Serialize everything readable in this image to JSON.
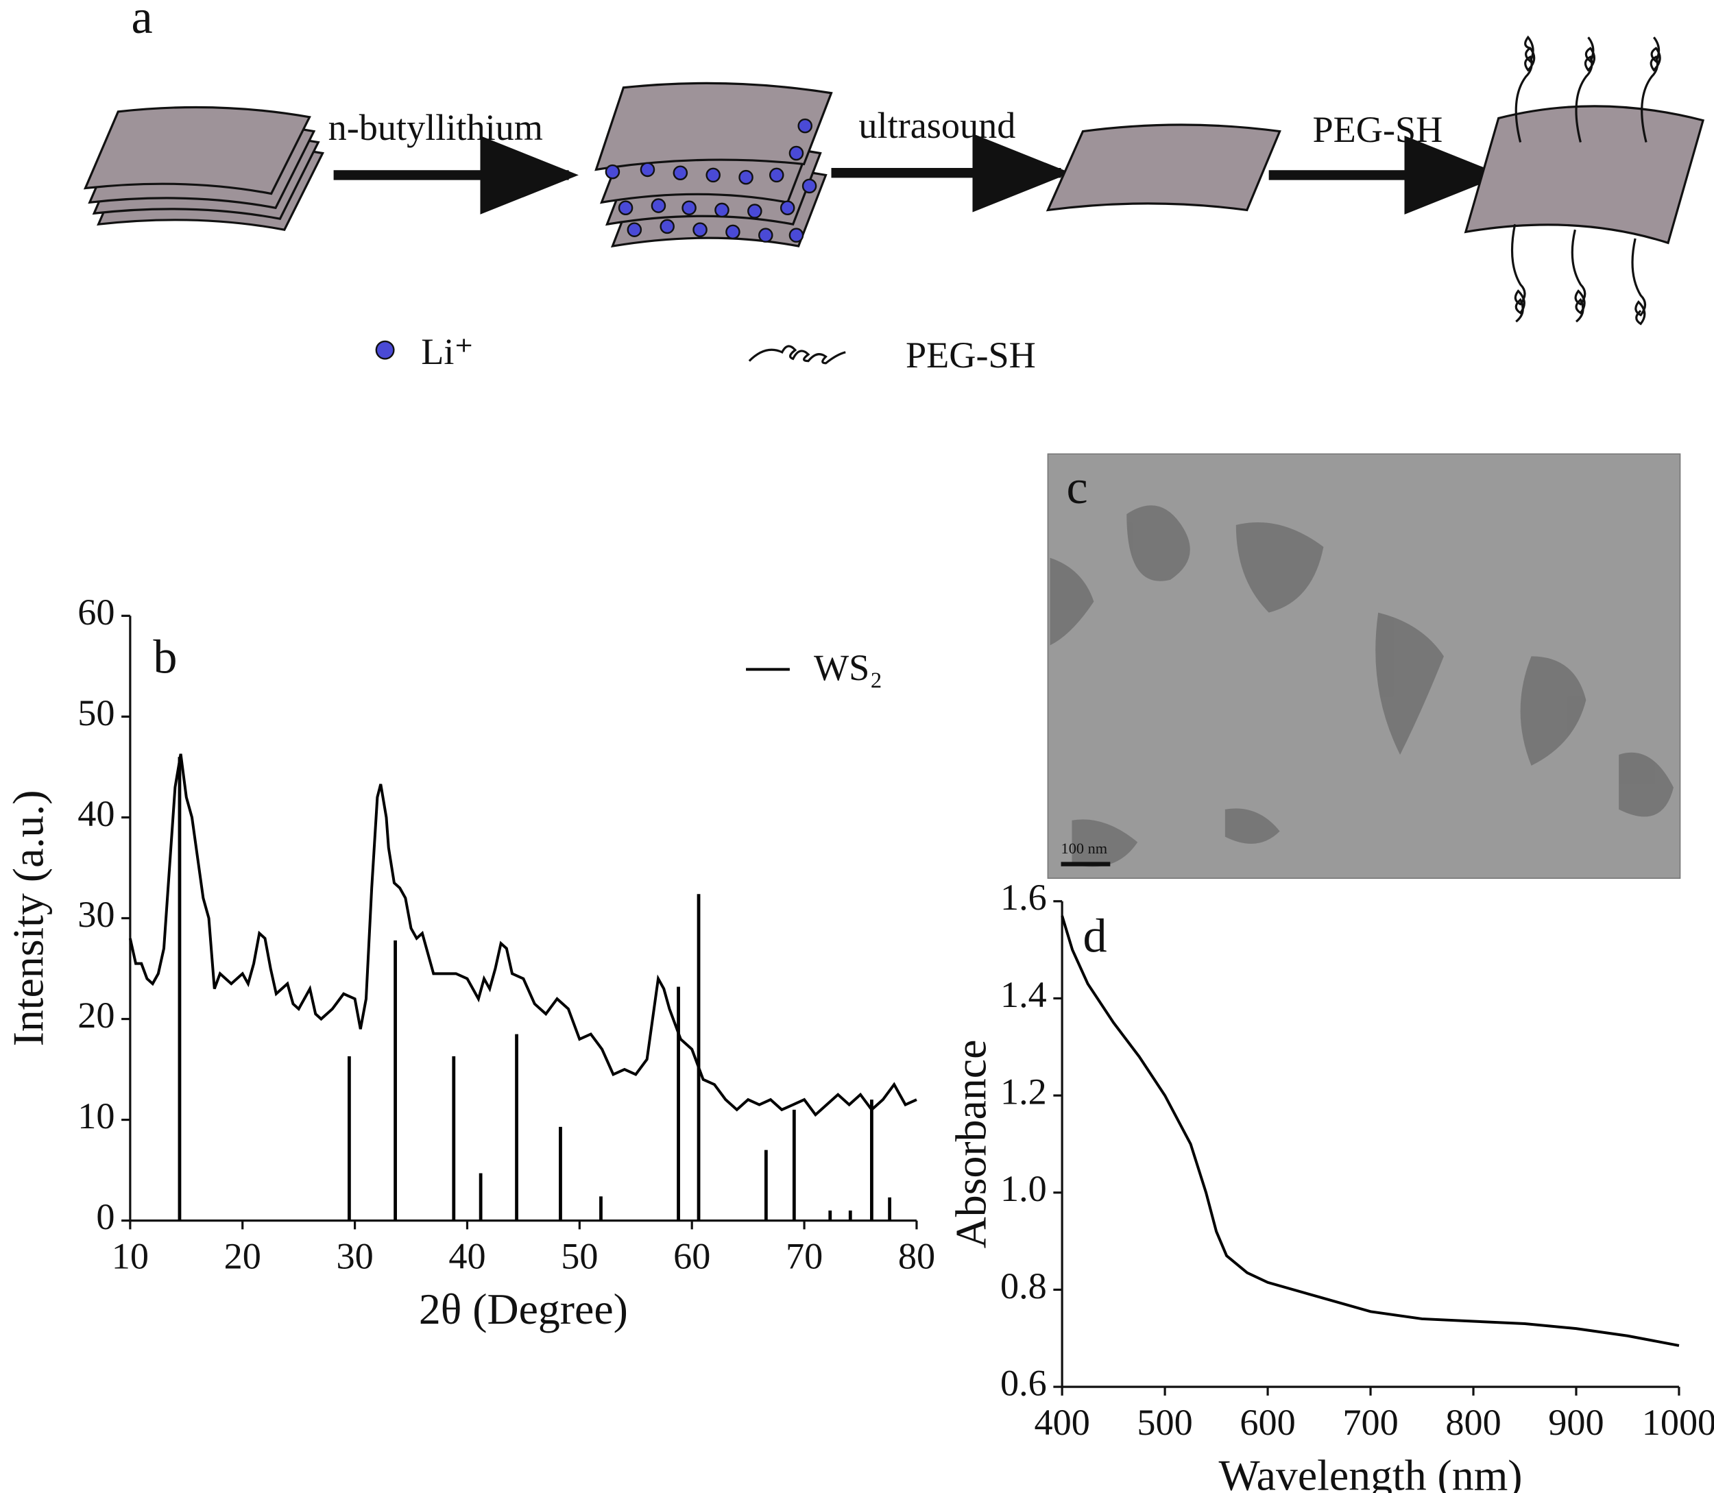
{
  "diagram": {
    "label": "a",
    "step1": "n-butyllithium",
    "step2": "ultrasound",
    "step3": "PEG-SH",
    "legend_li": "Li⁺",
    "legend_peg": "PEG-SH"
  },
  "image": {
    "label": "c",
    "scale_bar": "100 nm"
  },
  "chart_data": [
    {
      "type": "line",
      "label": "b",
      "xlabel": "2θ (Degree)",
      "ylabel": "Intensity (a.u.)",
      "xlim": [
        10,
        80
      ],
      "ylim": [
        0,
        60
      ],
      "xticks": [
        10,
        20,
        30,
        40,
        50,
        60,
        70,
        80
      ],
      "yticks": [
        0,
        10,
        20,
        30,
        40,
        50,
        60
      ],
      "series": [
        {
          "color": "#000000",
          "x": [
            10,
            10.5,
            11,
            11.5,
            12,
            12.5,
            13,
            13.5,
            14,
            14.5,
            15,
            15.5,
            16,
            16.5,
            17,
            17.5,
            18,
            18.5,
            19,
            20,
            20.5,
            21,
            21.5,
            22,
            22.5,
            23,
            24,
            24.5,
            25,
            26,
            26.5,
            27,
            28,
            29,
            30,
            30.5,
            31,
            31.5,
            32,
            32.3,
            32.8,
            33,
            33.5,
            34,
            34.5,
            35,
            35.5,
            36,
            37,
            38,
            39,
            40,
            41,
            41.5,
            42,
            42.5,
            43,
            43.5,
            44,
            45,
            46,
            47,
            48,
            49,
            50,
            51,
            52,
            53,
            54,
            55,
            56,
            57,
            57.5,
            58,
            59,
            60,
            61,
            62,
            63,
            64,
            65,
            66,
            67,
            68,
            69,
            70,
            71,
            72,
            73,
            74,
            75,
            76,
            77,
            78,
            79,
            80
          ],
          "values": [
            28,
            25.5,
            25.5,
            24,
            23.5,
            24.5,
            27,
            35,
            43,
            46.3,
            42,
            40,
            36,
            32,
            30,
            23,
            24.5,
            24,
            23.5,
            24.5,
            23.5,
            25.5,
            28.5,
            28,
            25,
            22.5,
            23.5,
            21.5,
            21,
            23,
            20.5,
            20,
            21,
            22.5,
            22,
            19,
            22,
            33,
            42,
            43.3,
            40,
            37,
            33.5,
            33,
            32,
            29,
            28,
            28.5,
            24.5,
            24.5,
            24.5,
            24,
            22,
            24,
            23,
            25,
            27.5,
            27,
            24.5,
            24,
            21.5,
            20.5,
            22,
            21,
            18,
            18.5,
            17,
            14.5,
            15,
            14.5,
            16,
            24,
            23,
            21,
            18,
            17,
            14,
            13.5,
            12,
            11,
            12,
            11.5,
            12,
            11,
            11.5,
            12,
            10.5,
            11.5,
            12.5,
            11.5,
            12.5,
            11,
            12,
            13.5,
            11.5,
            12
          ]
        },
        {
          "name": "WS₂",
          "type": "stick",
          "color": "#000000",
          "x": [
            14.4,
            29.5,
            33.6,
            38.8,
            41.2,
            44.4,
            48.3,
            51.9,
            58.8,
            60.6,
            66.6,
            69.1,
            72.3,
            74.1,
            76,
            77.6
          ],
          "values": [
            46,
            16.3,
            27.8,
            16.3,
            4.7,
            18.5,
            9.3,
            2.4,
            23.2,
            32.4,
            7,
            11,
            1,
            1,
            12,
            2.3
          ]
        }
      ]
    },
    {
      "type": "line",
      "label": "d",
      "xlabel": "Wavelength (nm)",
      "ylabel": "Absorbance",
      "xlim": [
        400,
        1000
      ],
      "ylim": [
        0.6,
        1.6
      ],
      "xticks": [
        400,
        500,
        600,
        700,
        800,
        900,
        1000
      ],
      "yticks": [
        0.6,
        0.8,
        {
          "value": 1,
          "label": "1.0"
        },
        1.2,
        1.4,
        1.6
      ],
      "series": [
        {
          "color": "#000000",
          "x": [
            400,
            410,
            425,
            450,
            475,
            500,
            525,
            540,
            550,
            560,
            580,
            600,
            650,
            700,
            750,
            800,
            850,
            900,
            950,
            1000
          ],
          "values": [
            1.57,
            1.5,
            1.43,
            1.35,
            1.28,
            1.2,
            1.1,
            1.0,
            0.92,
            0.87,
            0.835,
            0.815,
            0.785,
            0.755,
            0.74,
            0.735,
            0.73,
            0.72,
            0.705,
            0.685
          ]
        }
      ]
    }
  ]
}
